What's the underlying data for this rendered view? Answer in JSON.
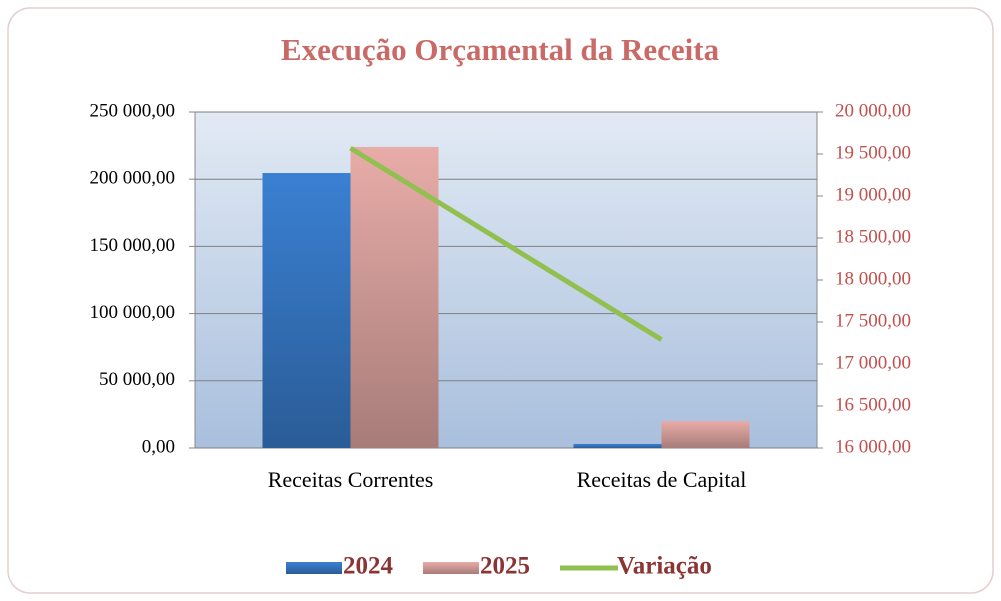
{
  "chart_data": {
    "type": "bar",
    "title": "Execução Orçamental da Receita",
    "categories": [
      "Receitas Correntes",
      "Receitas de Capital"
    ],
    "series": [
      {
        "name": "2024",
        "color": "#3a80d2",
        "values": [
          204600,
          3000
        ]
      },
      {
        "name": "2025",
        "color": "#e8aca8",
        "values": [
          224000,
          20000
        ]
      },
      {
        "name": "Variação",
        "type": "line",
        "axis": "y2",
        "color": "#92c050",
        "values": [
          19570,
          17290
        ]
      }
    ],
    "ylim": [
      0,
      250000
    ],
    "yticks": [
      {
        "value": 0,
        "label": "0,00"
      },
      {
        "value": 50000,
        "label": "50 000,00"
      },
      {
        "value": 100000,
        "label": "100 000,00"
      },
      {
        "value": 150000,
        "label": "150 000,00"
      },
      {
        "value": 200000,
        "label": "200 000,00"
      },
      {
        "value": 250000,
        "label": "250 000,00"
      }
    ],
    "y2lim": [
      16000,
      20000
    ],
    "y2ticks": [
      {
        "value": 16000,
        "label": "16 000,00"
      },
      {
        "value": 16500,
        "label": "16 500,00"
      },
      {
        "value": 17000,
        "label": "17 000,00"
      },
      {
        "value": 17500,
        "label": "17 500,00"
      },
      {
        "value": 18000,
        "label": "18 000,00"
      },
      {
        "value": 18500,
        "label": "18 500,00"
      },
      {
        "value": 19000,
        "label": "19 000,00"
      },
      {
        "value": 19500,
        "label": "19 500,00"
      },
      {
        "value": 20000,
        "label": "20 000,00"
      }
    ],
    "grid": true,
    "legend": "bottom"
  }
}
